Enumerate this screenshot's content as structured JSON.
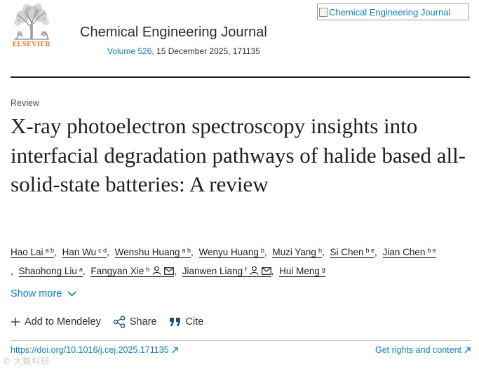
{
  "header": {
    "publisher_wordmark": "ELSEVIER",
    "journal_title": "Chemical Engineering Journal",
    "volume_link": "Volume 526",
    "issue_info": ", 15 December 2025, 171135",
    "cover_alt": "Chemical Engineering Journal"
  },
  "article": {
    "type": "Review",
    "title": "X-ray photoelectron spectroscopy insights into interfacial degradation pathways of halide based all-solid-state batteries: A review"
  },
  "authors": [
    {
      "name": "Hao Lai",
      "aff": "a b"
    },
    {
      "name": "Han Wu",
      "aff": "c d"
    },
    {
      "name": "Wenshu Huang",
      "aff": "a b"
    },
    {
      "name": "Wenyu Huang",
      "aff": "b"
    },
    {
      "name": "Muzi Yang",
      "aff": "b"
    },
    {
      "name": "Si Chen",
      "aff": "b e"
    },
    {
      "name": "Jian Chen",
      "aff": "b e"
    },
    {
      "name": "Shaohong Liu",
      "aff": "a"
    },
    {
      "name": "Fangyan Xie",
      "aff": "b"
    },
    {
      "name": "Jianwen Liang",
      "aff": "f"
    },
    {
      "name": "Hui Meng",
      "aff": "g"
    }
  ],
  "controls": {
    "show_more": "Show more",
    "add_mendeley": "Add to Mendeley",
    "share": "Share",
    "cite": "Cite"
  },
  "links": {
    "doi": "https://doi.org/10.1016/j.cej.2025.171135",
    "rights": "Get rights and content"
  },
  "watermark": "✆ 大数科研",
  "colors": {
    "link": "#0c7dbb",
    "publisher": "#e9711c",
    "text": "#1f1f1f"
  }
}
